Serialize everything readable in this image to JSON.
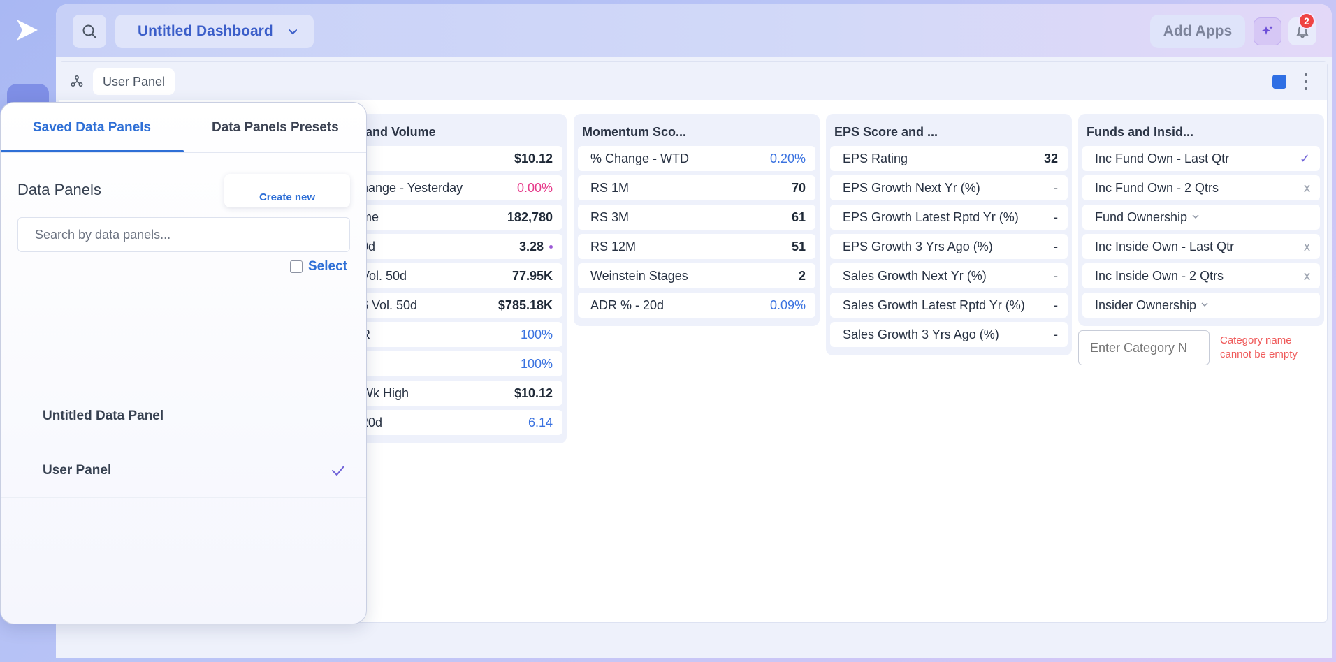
{
  "topbar": {
    "dashboard_title": "Untitled Dashboard",
    "add_apps_label": "Add Apps",
    "notification_count": "2"
  },
  "panel": {
    "tab_label": "User Panel",
    "accent_color": "#2f6fe4"
  },
  "columns": [
    {
      "title": "and Volume",
      "rows": [
        {
          "label": "",
          "value": "$10.12",
          "style": "bold"
        },
        {
          "label": "hange - Yesterday",
          "value": "0.00%",
          "style": "pink"
        },
        {
          "label": "me",
          "value": "182,780",
          "style": "bold"
        },
        {
          "label": "0d",
          "value": "3.28",
          "style": "bold-dot"
        },
        {
          "label": "Vol. 50d",
          "value": "77.95K",
          "style": "bold"
        },
        {
          "label": "$ Vol. 50d",
          "value": "$785.18K",
          "style": "bold"
        },
        {
          "label": "R",
          "value": "100%",
          "style": "blue"
        },
        {
          "label": "",
          "value": "100%",
          "style": "blue"
        },
        {
          "label": "Wk High",
          "value": "$10.12",
          "style": "bold"
        },
        {
          "label": "20d",
          "value": "6.14",
          "style": "blue"
        }
      ]
    },
    {
      "title": "Momentum Sco...",
      "rows": [
        {
          "label": "% Change - WTD",
          "value": "0.20%",
          "style": "blue"
        },
        {
          "label": "RS 1M",
          "value": "70",
          "style": "bold"
        },
        {
          "label": "RS 3M",
          "value": "61",
          "style": "bold"
        },
        {
          "label": "RS 12M",
          "value": "51",
          "style": "bold"
        },
        {
          "label": "Weinstein Stages",
          "value": "2",
          "style": "bold"
        },
        {
          "label": "ADR % - 20d",
          "value": "0.09%",
          "style": "blue"
        }
      ]
    },
    {
      "title": "EPS Score and ...",
      "rows": [
        {
          "label": "EPS Rating",
          "value": "32",
          "style": "bold"
        },
        {
          "label": "EPS Growth Next Yr (%)",
          "value": "-",
          "style": "dash"
        },
        {
          "label": "EPS Growth Latest Rptd Yr (%)",
          "value": "-",
          "style": "dash"
        },
        {
          "label": "EPS Growth 3 Yrs Ago (%)",
          "value": "-",
          "style": "dash"
        },
        {
          "label": "Sales Growth Next Yr (%)",
          "value": "-",
          "style": "dash"
        },
        {
          "label": "Sales Growth Latest Rptd Yr (%)",
          "value": "-",
          "style": "dash"
        },
        {
          "label": "Sales Growth 3 Yrs Ago (%)",
          "value": "-",
          "style": "dash"
        }
      ]
    },
    {
      "title": "Funds and Insid...",
      "rows": [
        {
          "label": "Inc Fund Own - Last Qtr",
          "value": "✓",
          "style": "check"
        },
        {
          "label": "Inc Fund Own - 2 Qtrs",
          "value": "x",
          "style": "x"
        },
        {
          "label": "Fund Ownership",
          "value": "",
          "style": "dropdown"
        },
        {
          "label": "Inc Inside Own - Last Qtr",
          "value": "x",
          "style": "x"
        },
        {
          "label": "Inc Inside Own - 2 Qtrs",
          "value": "x",
          "style": "x"
        },
        {
          "label": "Insider Ownership",
          "value": "",
          "style": "dropdown"
        }
      ]
    }
  ],
  "category": {
    "placeholder": "Enter Category N",
    "error": "Category name cannot be empty"
  },
  "popup": {
    "tab_saved": "Saved Data Panels",
    "tab_presets": "Data Panels Presets",
    "title": "Data Panels",
    "create_new": "Create new",
    "search_placeholder": "Search by data panels...",
    "select_label": "Select",
    "items": [
      {
        "label": "Untitled Data Panel",
        "selected": false
      },
      {
        "label": "User Panel",
        "selected": true
      }
    ]
  }
}
